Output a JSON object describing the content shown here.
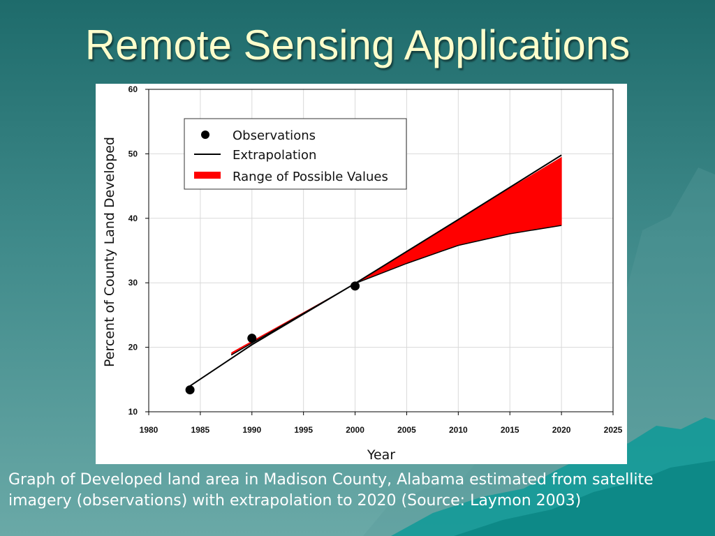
{
  "slide": {
    "title": "Remote Sensing Applications",
    "caption": "Graph of Developed land area in Madison County, Alabama estimated from satellite imagery (observations) with extrapolation to 2020 (Source: Laymon 2003)"
  },
  "colors": {
    "title": "#ffffcc",
    "range_fill": "#ff0000",
    "line": "#000000",
    "background_top": "#1e6b6b",
    "background_bottom": "#6aa9a7"
  },
  "chart_data": {
    "type": "line",
    "xlabel": "Year",
    "ylabel": "Percent of County Land Developed",
    "xlim": [
      1980,
      2025
    ],
    "ylim": [
      10,
      60
    ],
    "xticks": [
      1980,
      1985,
      1990,
      1995,
      2000,
      2005,
      2010,
      2015,
      2020,
      2025
    ],
    "yticks": [
      10,
      20,
      30,
      40,
      50,
      60
    ],
    "grid": true,
    "legend_position": "top-left",
    "legend": [
      "Observations",
      "Extrapolation",
      "Range of Possible Values"
    ],
    "series": [
      {
        "name": "Observations",
        "kind": "scatter",
        "x": [
          1984,
          1990,
          2000
        ],
        "y": [
          13.4,
          21.4,
          29.5
        ]
      },
      {
        "name": "Extrapolation",
        "kind": "line",
        "x": [
          1984,
          1990,
          2000,
          2010,
          2020
        ],
        "y": [
          14.0,
          20.4,
          29.9,
          39.8,
          49.8
        ]
      },
      {
        "name": "Range of Possible Values",
        "kind": "band",
        "x": [
          1988,
          2000,
          2005,
          2010,
          2015,
          2020
        ],
        "y_low": [
          18.8,
          29.9,
          33.0,
          35.8,
          37.6,
          38.9
        ],
        "y_high": [
          19.2,
          29.9,
          34.9,
          39.8,
          44.7,
          49.5
        ]
      }
    ]
  }
}
